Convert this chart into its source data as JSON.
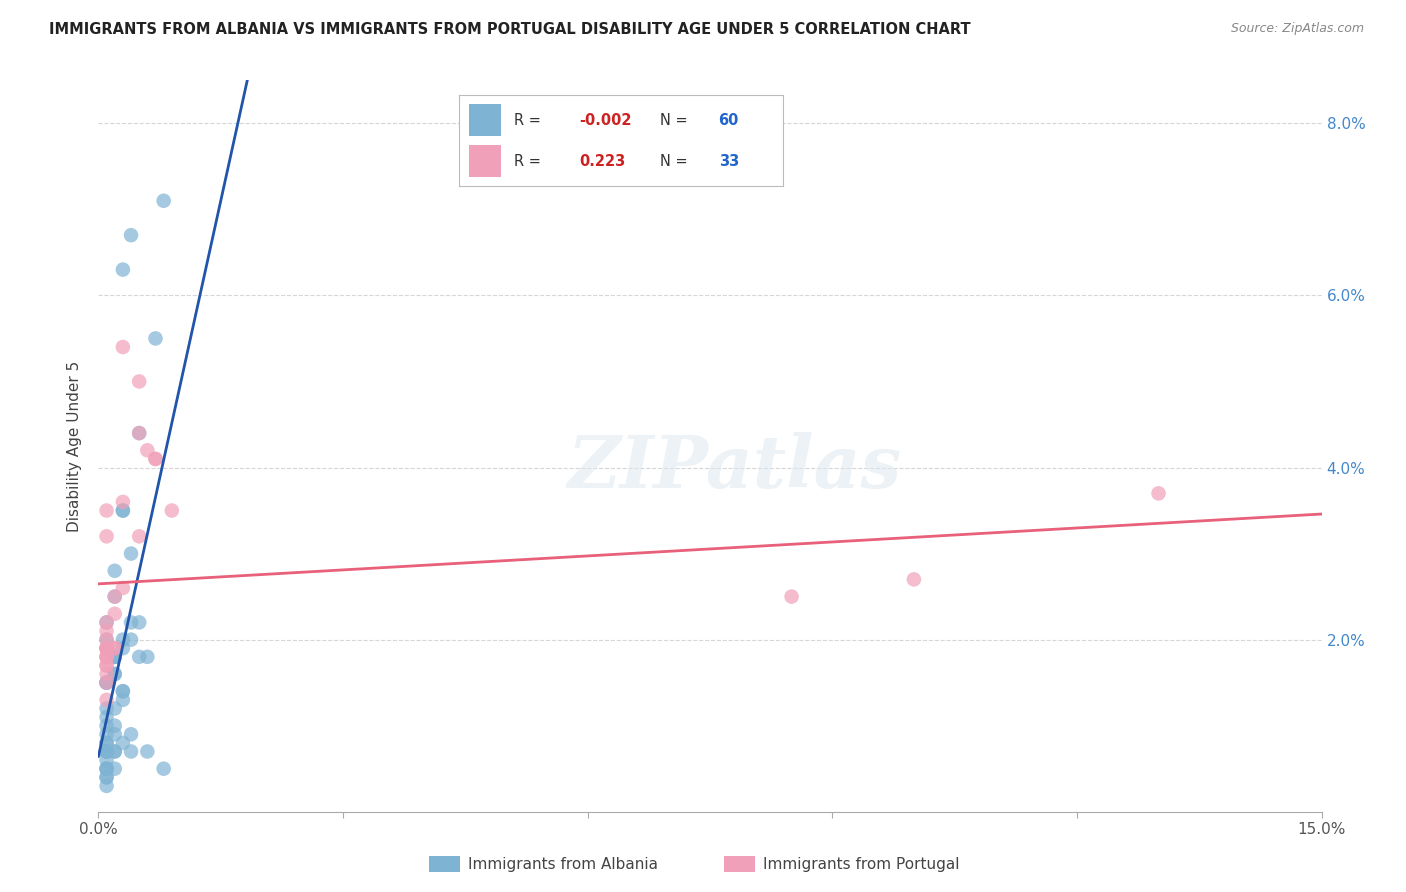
{
  "title": "IMMIGRANTS FROM ALBANIA VS IMMIGRANTS FROM PORTUGAL DISABILITY AGE UNDER 5 CORRELATION CHART",
  "source": "Source: ZipAtlas.com",
  "ylabel": "Disability Age Under 5",
  "xlim": [
    0.0,
    0.15
  ],
  "ylim": [
    0.0,
    0.085
  ],
  "albania_color": "#7fb3d3",
  "portugal_color": "#f0a0b8",
  "albania_line_color": "#2255aa",
  "portugal_line_color": "#e8607a",
  "albania_mean_color": "#aaccee",
  "legend_R_color": "#cc2222",
  "legend_N_color": "#2266cc",
  "grid_color": "#cccccc",
  "background_color": "#ffffff",
  "albania_x": [
    0.003,
    0.008,
    0.004,
    0.007,
    0.001,
    0.001,
    0.002,
    0.002,
    0.003,
    0.004,
    0.002,
    0.001,
    0.001,
    0.003,
    0.002,
    0.004,
    0.001,
    0.002,
    0.001,
    0.001,
    0.005,
    0.003,
    0.003,
    0.001,
    0.001,
    0.001,
    0.001,
    0.002,
    0.001,
    0.004,
    0.002,
    0.002,
    0.003,
    0.001,
    0.002,
    0.002,
    0.001,
    0.001,
    0.003,
    0.005,
    0.002,
    0.001,
    0.004,
    0.001,
    0.001,
    0.001,
    0.001,
    0.006,
    0.003,
    0.005,
    0.001,
    0.002,
    0.001,
    0.003,
    0.006,
    0.008,
    0.002,
    0.004,
    0.001,
    0.001
  ],
  "albania_y": [
    0.063,
    0.071,
    0.067,
    0.055,
    0.019,
    0.02,
    0.028,
    0.025,
    0.019,
    0.03,
    0.018,
    0.007,
    0.007,
    0.013,
    0.01,
    0.009,
    0.015,
    0.016,
    0.015,
    0.007,
    0.044,
    0.035,
    0.035,
    0.012,
    0.01,
    0.015,
    0.011,
    0.012,
    0.022,
    0.02,
    0.018,
    0.016,
    0.02,
    0.008,
    0.009,
    0.005,
    0.005,
    0.004,
    0.014,
    0.018,
    0.018,
    0.009,
    0.022,
    0.007,
    0.005,
    0.003,
    0.004,
    0.018,
    0.014,
    0.022,
    0.006,
    0.007,
    0.007,
    0.008,
    0.007,
    0.005,
    0.007,
    0.007,
    0.005,
    0.008
  ],
  "portugal_x": [
    0.001,
    0.001,
    0.001,
    0.002,
    0.003,
    0.001,
    0.002,
    0.002,
    0.001,
    0.001,
    0.001,
    0.003,
    0.002,
    0.001,
    0.001,
    0.001,
    0.001,
    0.001,
    0.005,
    0.001,
    0.001,
    0.003,
    0.005,
    0.006,
    0.001,
    0.007,
    0.001,
    0.005,
    0.007,
    0.009,
    0.085,
    0.1,
    0.13
  ],
  "portugal_y": [
    0.019,
    0.018,
    0.018,
    0.025,
    0.026,
    0.032,
    0.019,
    0.023,
    0.021,
    0.017,
    0.013,
    0.036,
    0.019,
    0.035,
    0.022,
    0.016,
    0.019,
    0.017,
    0.05,
    0.018,
    0.015,
    0.054,
    0.044,
    0.042,
    0.02,
    0.041,
    0.019,
    0.032,
    0.041,
    0.035,
    0.025,
    0.027,
    0.037
  ],
  "albania_R": -0.002,
  "albania_N": 60,
  "portugal_R": 0.223,
  "portugal_N": 33,
  "watermark": "ZIPatlas"
}
